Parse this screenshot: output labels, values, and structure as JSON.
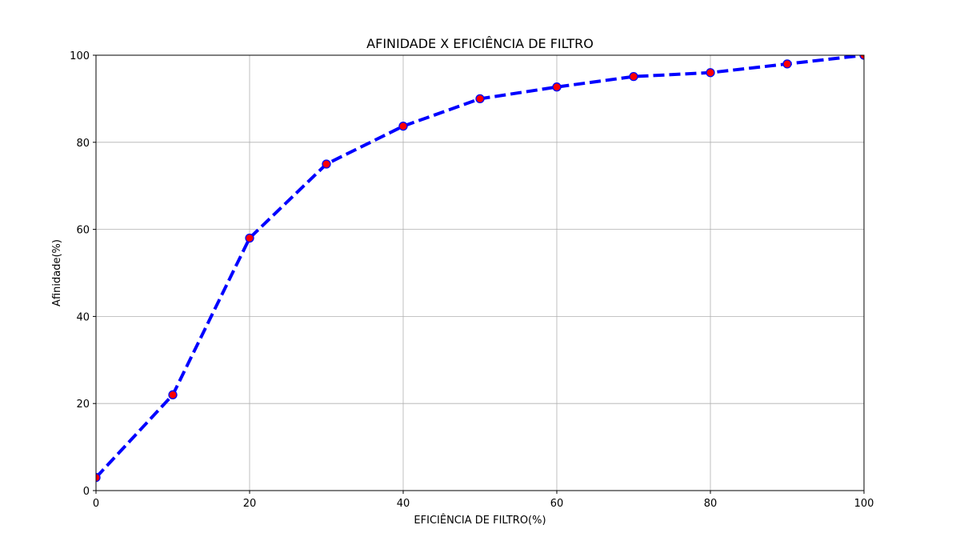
{
  "chart_data": {
    "type": "line",
    "title": "AFINIDADE X EFICIÊNCIA DE FILTRO",
    "xlabel": "EFICIÊNCIA DE FILTRO(%)",
    "ylabel": "Afinidade(%)",
    "xlim": [
      0,
      100
    ],
    "ylim": [
      0,
      100
    ],
    "xticks": [
      0,
      20,
      40,
      60,
      80,
      100
    ],
    "yticks": [
      0,
      20,
      40,
      60,
      80,
      100
    ],
    "grid": true,
    "series": [
      {
        "x": [
          0,
          10,
          20,
          30,
          40,
          50,
          60,
          70,
          80,
          90,
          100
        ],
        "y": [
          3,
          22,
          58,
          75,
          83.7,
          90,
          92.7,
          95.1,
          96,
          98,
          100
        ],
        "line_color": "#0000ff",
        "line_style": "dashed",
        "marker": "circle",
        "marker_fill": "#ff0000",
        "marker_edge": "#0000ff"
      }
    ]
  }
}
